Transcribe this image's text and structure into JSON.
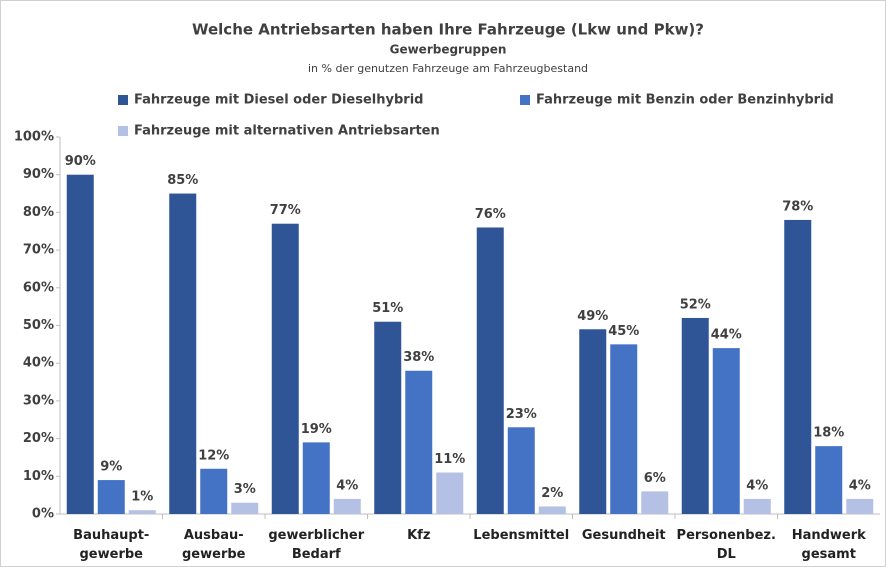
{
  "chart_data": {
    "type": "bar",
    "title": "Welche Antriebsarten haben Ihre Fahrzeuge (Lkw und Pkw)?",
    "subtitle": "Gewerbegruppen",
    "note": "in % der genutzen Fahrzeuge am Fahrzeugbestand",
    "categories": [
      "Bauhaupt-\ngewerbe",
      "Ausbau-\ngewerbe",
      "gewerblicher\nBedarf",
      "Kfz",
      "Lebensmittel",
      "Gesundheit",
      "Personenbez.\nDL",
      "Handwerk\ngesamt"
    ],
    "series": [
      {
        "name": "Fahrzeuge mit Diesel oder Dieselhybrid",
        "color": "#2f5597",
        "values": [
          90,
          85,
          77,
          51,
          76,
          49,
          52,
          78
        ],
        "value_labels": [
          "90%",
          "85%",
          "77%",
          "51%",
          "76%",
          "49%",
          "52%",
          "78%"
        ]
      },
      {
        "name": "Fahrzeuge mit Benzin oder Benzinhybrid",
        "color": "#4472c4",
        "values": [
          9,
          12,
          19,
          38,
          23,
          45,
          44,
          18
        ],
        "value_labels": [
          "9%",
          "12%",
          "19%",
          "38%",
          "23%",
          "45%",
          "44%",
          "18%"
        ]
      },
      {
        "name": "Fahrzeuge mit alternativen Antriebsarten",
        "color": "#b4c0e4",
        "values": [
          1,
          3,
          4,
          11,
          2,
          6,
          4,
          4
        ],
        "value_labels": [
          "1%",
          "3%",
          "4%",
          "11%",
          "2%",
          "6%",
          "4%",
          "4%"
        ]
      }
    ],
    "ylim": [
      0,
      100
    ],
    "yticks": [
      {
        "value": 0,
        "label": "0%"
      },
      {
        "value": 10,
        "label": "10%"
      },
      {
        "value": 20,
        "label": "20%"
      },
      {
        "value": 30,
        "label": "30%"
      },
      {
        "value": 40,
        "label": "40%"
      },
      {
        "value": 50,
        "label": "50%"
      },
      {
        "value": 60,
        "label": "60%"
      },
      {
        "value": 70,
        "label": "70%"
      },
      {
        "value": 80,
        "label": "80%"
      },
      {
        "value": 90,
        "label": "90%"
      },
      {
        "value": 100,
        "label": "100%"
      }
    ],
    "grid": false
  }
}
